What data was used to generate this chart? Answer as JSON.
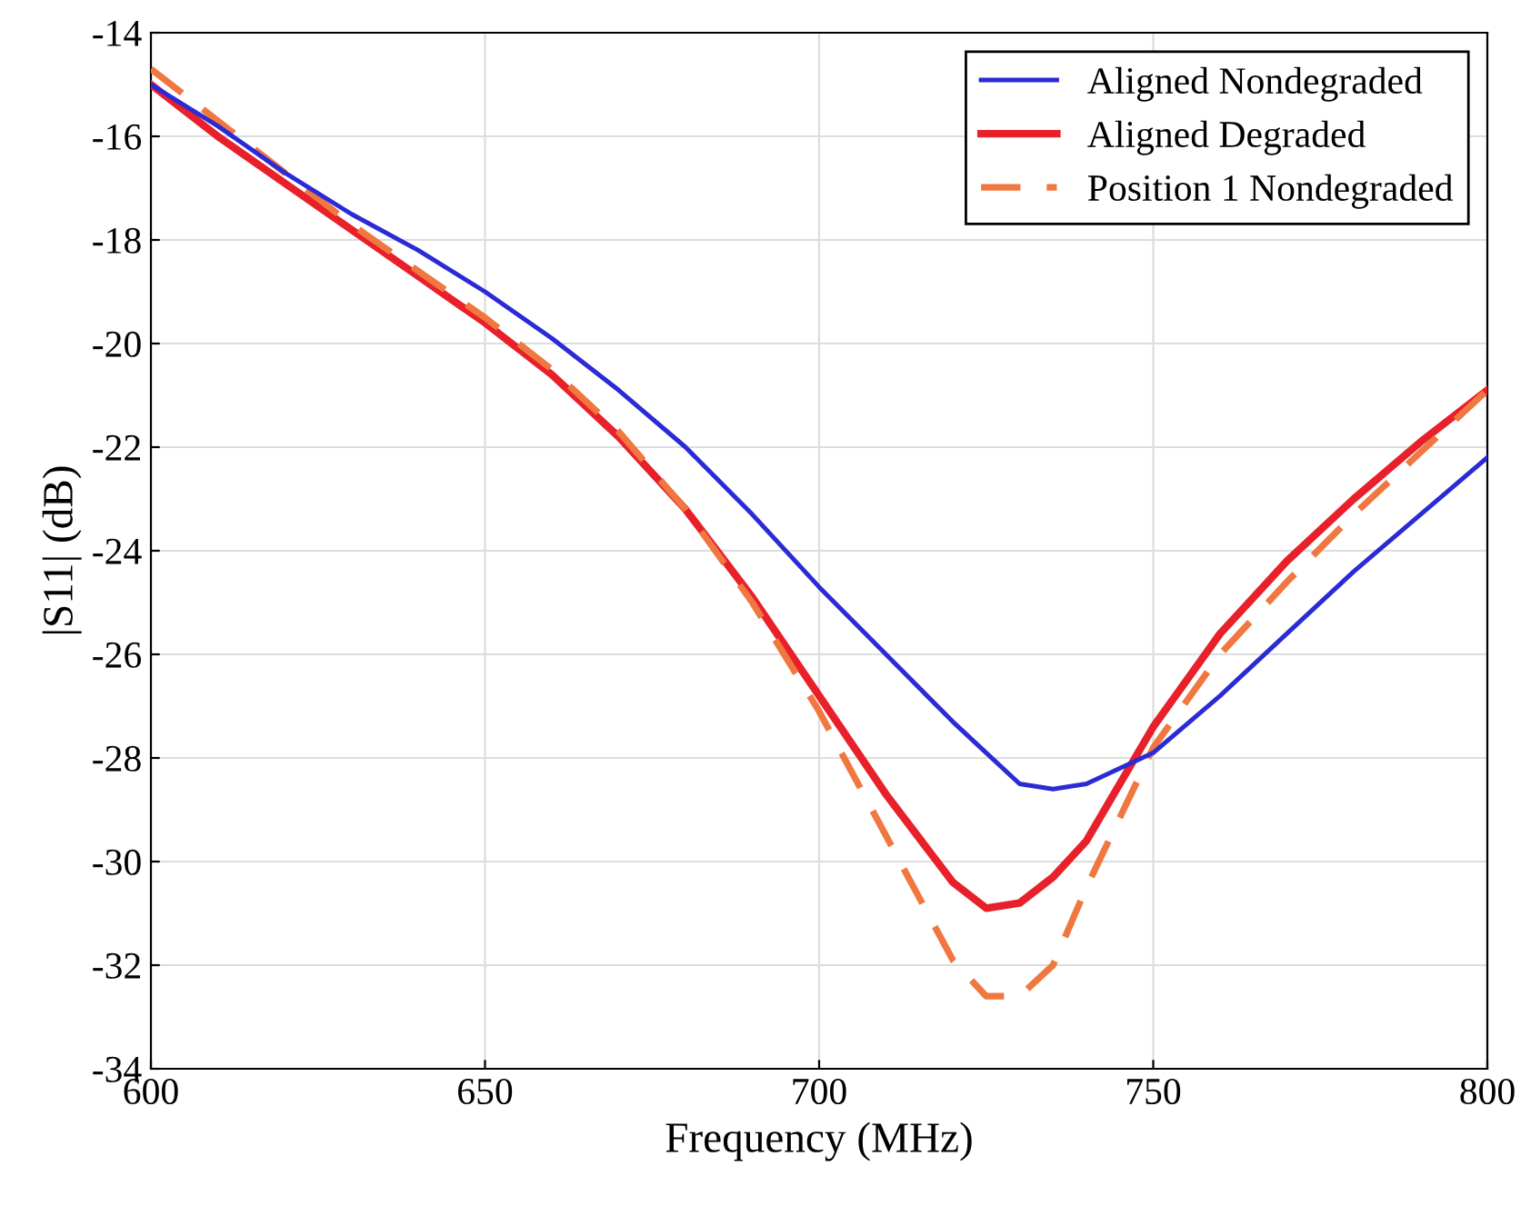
{
  "chart_data": {
    "type": "line",
    "xlabel": "Frequency (MHz)",
    "ylabel": "|S11| (dB)",
    "x": [
      600,
      610,
      620,
      630,
      640,
      650,
      660,
      670,
      680,
      690,
      700,
      710,
      720,
      725,
      730,
      735,
      740,
      750,
      760,
      770,
      780,
      790,
      800
    ],
    "series": [
      {
        "name": "Aligned Nondegraded",
        "color": "#2b2bd6",
        "line_style": "solid",
        "values": [
          -15.0,
          -15.8,
          -16.7,
          -17.5,
          -18.2,
          -19.0,
          -19.9,
          -20.9,
          -22.0,
          -23.3,
          -24.7,
          -26.0,
          -27.3,
          -27.9,
          -28.5,
          -28.6,
          -28.5,
          -27.9,
          -26.8,
          -25.6,
          -24.4,
          -23.3,
          -22.2
        ]
      },
      {
        "name": "Aligned Degraded",
        "color": "#e8202a",
        "line_style": "solid",
        "values": [
          -15.0,
          -16.0,
          -16.9,
          -17.8,
          -18.7,
          -19.6,
          -20.6,
          -21.8,
          -23.2,
          -24.9,
          -26.8,
          -28.7,
          -30.4,
          -30.9,
          -30.8,
          -30.3,
          -29.6,
          -27.4,
          -25.6,
          -24.2,
          -23.0,
          -21.9,
          -20.9
        ]
      },
      {
        "name": "Position 1 Nondegraded",
        "color": "#f07840",
        "line_style": "dashed",
        "values": [
          -14.7,
          -15.7,
          -16.7,
          -17.7,
          -18.6,
          -19.5,
          -20.5,
          -21.7,
          -23.2,
          -25.0,
          -27.1,
          -29.5,
          -31.9,
          -32.6,
          -32.6,
          -32.0,
          -30.5,
          -27.8,
          -26.0,
          -24.6,
          -23.3,
          -22.1,
          -20.9
        ]
      }
    ],
    "xlim": [
      600,
      800
    ],
    "xticks": [
      600,
      650,
      700,
      750,
      800
    ],
    "ylim": [
      -34,
      -14
    ],
    "yticks": [
      -34,
      -32,
      -30,
      -28,
      -26,
      -24,
      -22,
      -20,
      -18,
      -16,
      -14
    ],
    "grid": true,
    "legend": "top right",
    "marker": "none"
  }
}
